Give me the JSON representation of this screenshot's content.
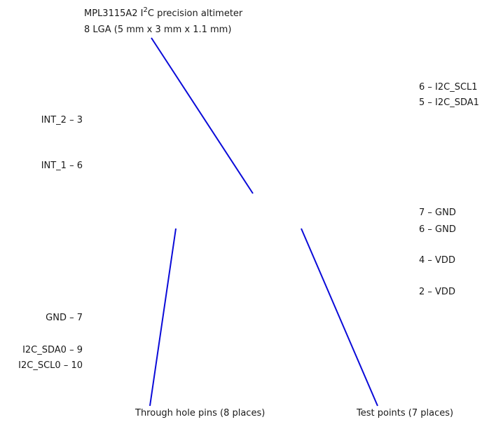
{
  "title": {
    "part_prefix": "MPL3115A2 I",
    "superscript": "2",
    "part_suffix": "C precision altimeter",
    "package": "8 LGA (5 mm x 3 mm x 1.1 mm)"
  },
  "left_pins": [
    {
      "label": "INT_2 – 3"
    },
    {
      "label": "INT_1 – 6"
    },
    {
      "label": "GND – 7"
    },
    {
      "label": "I2C_SDA0 – 9"
    },
    {
      "label": "I2C_SCL0 – 10"
    }
  ],
  "right_pins": [
    {
      "label": "6 – I2C_SCL1"
    },
    {
      "label": "5 – I2C_SDA1"
    },
    {
      "label": "7 – GND"
    },
    {
      "label": "6 – GND"
    },
    {
      "label": "4 – VDD"
    },
    {
      "label": "2 – VDD"
    }
  ],
  "callouts": {
    "through_hole": "Through hole pins (8 places)",
    "test_points": "Test points (7 places)"
  },
  "colors": {
    "leader_line": "#0a0ad8",
    "text": "#1a1a1a"
  }
}
